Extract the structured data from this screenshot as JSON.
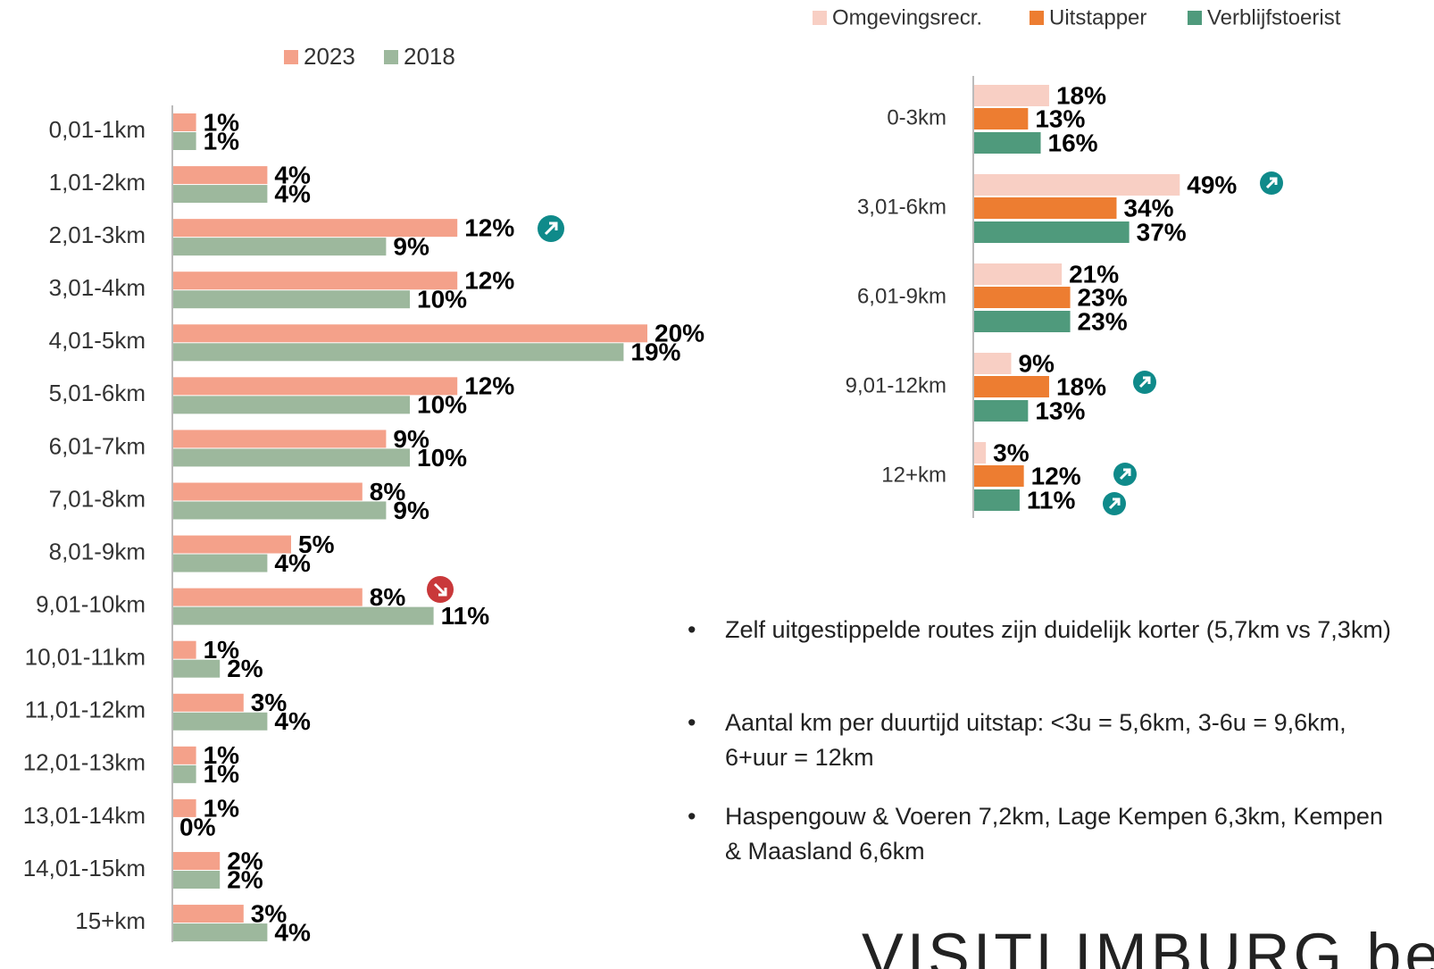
{
  "chart_data": [
    {
      "type": "bar",
      "orientation": "horizontal",
      "categories": [
        "0,01-1km",
        "1,01-2km",
        "2,01-3km",
        "3,01-4km",
        "4,01-5km",
        "5,01-6km",
        "6,01-7km",
        "7,01-8km",
        "8,01-9km",
        "9,01-10km",
        "10,01-11km",
        "11,01-12km",
        "12,01-13km",
        "13,01-14km",
        "14,01-15km",
        "15+km"
      ],
      "series": [
        {
          "name": "2023",
          "color": "#f4a18a",
          "values": [
            1,
            4,
            12,
            12,
            20,
            12,
            9,
            8,
            5,
            8,
            1,
            3,
            1,
            1,
            2,
            3
          ],
          "value_labels": [
            "1%",
            "4%",
            "12%",
            "12%",
            "20%",
            "12%",
            "9%",
            "8%",
            "5%",
            "8%",
            "1%",
            "3%",
            "1%",
            "1%",
            "2%",
            "3%"
          ]
        },
        {
          "name": "2018",
          "color": "#9db89d",
          "values": [
            1,
            4,
            9,
            10,
            19,
            10,
            10,
            9,
            4,
            11,
            2,
            4,
            1,
            0,
            2,
            4
          ],
          "value_labels": [
            "1%",
            "4%",
            "9%",
            "10%",
            "19%",
            "10%",
            "10%",
            "9%",
            "4%",
            "11%",
            "2%",
            "4%",
            "1%",
            "0%",
            "2%",
            "4%"
          ]
        }
      ]
    },
    {
      "type": "bar",
      "orientation": "horizontal",
      "categories": [
        "0-3km",
        "3,01-6km",
        "6,01-9km",
        "9,01-12km",
        "12+km"
      ],
      "series": [
        {
          "name": "Omgevingsrecr.",
          "color": "#f8cfc4",
          "values": [
            18,
            49,
            21,
            9,
            3
          ],
          "value_labels": [
            "18%",
            "49%",
            "21%",
            "9%",
            "3%"
          ]
        },
        {
          "name": "Uitstapper",
          "color": "#ed7d31",
          "values": [
            13,
            34,
            23,
            18,
            12
          ],
          "value_labels": [
            "13%",
            "34%",
            "23%",
            "18%",
            "12%"
          ]
        },
        {
          "name": "Verblijfstoerist",
          "color": "#4f9a7c",
          "values": [
            16,
            37,
            23,
            13,
            11
          ],
          "value_labels": [
            "16%",
            "37%",
            "23%",
            "13%",
            "11%"
          ]
        }
      ]
    }
  ],
  "notes": [
    "Zelf uitgestippelde routes zijn duidelijk korter (5,7km vs 7,3km)",
    "Aantal km per duurtijd uitstap: <3u = 5,6km, 3-6u = 9,6km, 6+uur = 12km",
    "Haspengouw & Voeren 7,2km, Lage Kempen 6,3km, Kempen & Maasland 6,6km"
  ],
  "logo": "VISITLIMBURG.be"
}
